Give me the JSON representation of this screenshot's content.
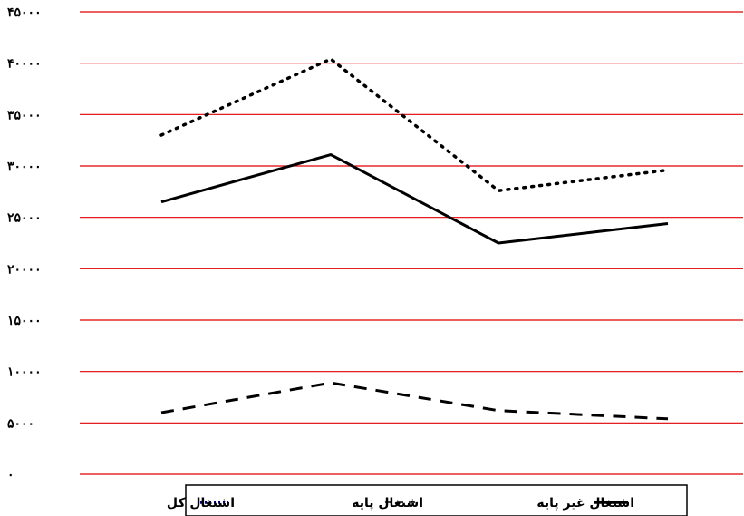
{
  "chart_data": {
    "type": "line",
    "x": [
      "1",
      "2",
      "3",
      "4"
    ],
    "ylim": [
      0,
      45000
    ],
    "yticks": [
      {
        "value": 0,
        "label": "۰"
      },
      {
        "value": 5000,
        "label": "۵۰۰۰"
      },
      {
        "value": 10000,
        "label": "۱۰۰۰۰"
      },
      {
        "value": 15000,
        "label": "۱۵۰۰۰"
      },
      {
        "value": 20000,
        "label": "۲۰۰۰۰"
      },
      {
        "value": 25000,
        "label": "۲۵۰۰۰"
      },
      {
        "value": 30000,
        "label": "۳۰۰۰۰"
      },
      {
        "value": 35000,
        "label": "۳۵۰۰۰"
      },
      {
        "value": 40000,
        "label": "۴۰۰۰۰"
      },
      {
        "value": 45000,
        "label": "۴۵۰۰۰"
      }
    ],
    "gridlines": true,
    "grid_color": "#e00000",
    "legend_position": "bottom",
    "series": [
      {
        "name": "اشتغال کل",
        "style": "dotted",
        "legend_color": "#000080",
        "values": [
          33000,
          40400,
          27600,
          29600
        ]
      },
      {
        "name": "اشتغال غیر پایه",
        "style": "solid",
        "legend_color": "#000000",
        "values": [
          26500,
          31100,
          22500,
          24400
        ]
      },
      {
        "name": "اشتغال پایه",
        "style": "dashed",
        "legend_color": "#000000",
        "values": [
          6000,
          8900,
          6200,
          5400
        ]
      }
    ]
  }
}
